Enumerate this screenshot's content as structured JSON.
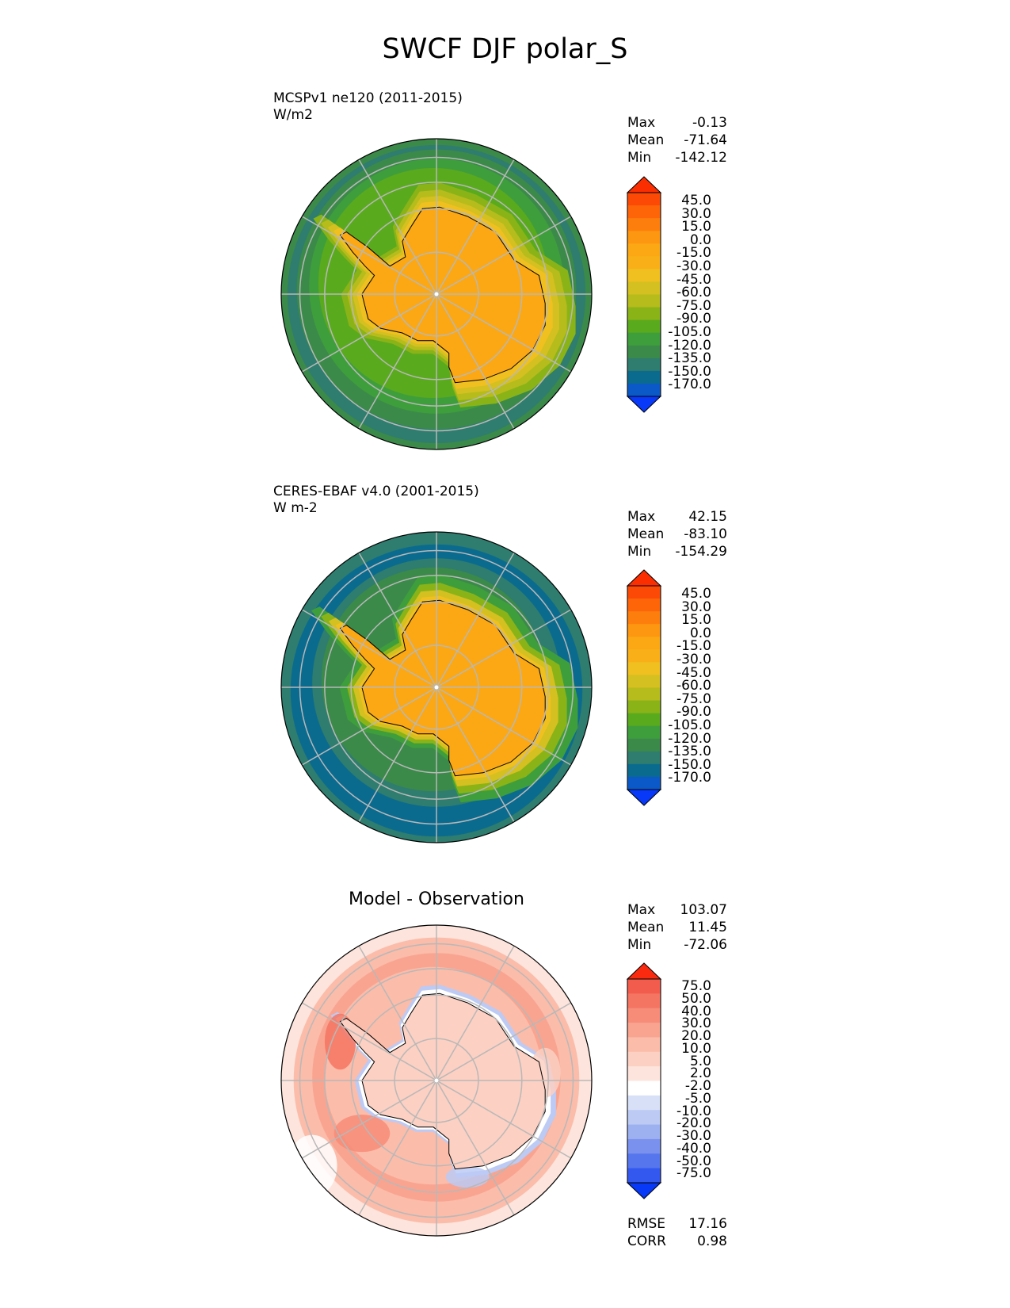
{
  "figure_title": "SWCF DJF polar_S",
  "colors": {
    "field": [
      "#0838f8",
      "#0b59c8",
      "#0a6b8f",
      "#2e7d6e",
      "#3b8a4a",
      "#3f9e3c",
      "#5aaa1e",
      "#8ab318",
      "#b6bc1c",
      "#d4c020",
      "#f0c020",
      "#f9b018",
      "#fba814",
      "#fd9610",
      "#fd7e0c",
      "#fd6508",
      "#fc4a06",
      "#fb2e02"
    ],
    "diff": [
      "#0838f8",
      "#3358f0",
      "#5676ee",
      "#7a92ee",
      "#9db0f0",
      "#bccaf4",
      "#d8e0f8",
      "#ffffff",
      "#fde4dc",
      "#fcd0c2",
      "#fbbcaa",
      "#f9a490",
      "#f78c78",
      "#f47562",
      "#f25c4c",
      "#fa2a10"
    ],
    "grid": "#b8b8b8",
    "antarctica": "#fba814"
  },
  "chart_data": [
    {
      "type": "heatmap",
      "projection": "south-polar-stereographic",
      "title_lines": [
        "MCSPv1 ne120 (2011-2015)",
        "W/m2"
      ],
      "stats": {
        "Max": "-0.13",
        "Mean": "-71.64",
        "Min": "-142.12"
      },
      "colorbar_ticks": [
        "45.0",
        "30.0",
        "15.0",
        "0.0",
        "-15.0",
        "-30.0",
        "-45.0",
        "-60.0",
        "-75.0",
        "-90.0",
        "-105.0",
        "-120.0",
        "-135.0",
        "-150.0",
        "-170.0"
      ],
      "colorbar_extend": "both",
      "grid": true
    },
    {
      "type": "heatmap",
      "projection": "south-polar-stereographic",
      "title_lines": [
        "CERES-EBAF v4.0 (2001-2015)",
        "W m-2"
      ],
      "stats": {
        "Max": "42.15",
        "Mean": "-83.10",
        "Min": "-154.29"
      },
      "colorbar_ticks": [
        "45.0",
        "30.0",
        "15.0",
        "0.0",
        "-15.0",
        "-30.0",
        "-45.0",
        "-60.0",
        "-75.0",
        "-90.0",
        "-105.0",
        "-120.0",
        "-135.0",
        "-150.0",
        "-170.0"
      ],
      "colorbar_extend": "both",
      "grid": true
    },
    {
      "type": "heatmap",
      "projection": "south-polar-stereographic",
      "title": "Model - Observation",
      "stats": {
        "Max": "103.07",
        "Mean": "11.45",
        "Min": "-72.06"
      },
      "colorbar_ticks": [
        "75.0",
        "50.0",
        "40.0",
        "30.0",
        "20.0",
        "10.0",
        "5.0",
        "2.0",
        "-2.0",
        "-5.0",
        "-10.0",
        "-20.0",
        "-30.0",
        "-40.0",
        "-50.0",
        "-75.0"
      ],
      "colorbar_extend": "both",
      "metrics": {
        "RMSE": "17.16",
        "CORR": "0.98"
      },
      "grid": true
    }
  ]
}
